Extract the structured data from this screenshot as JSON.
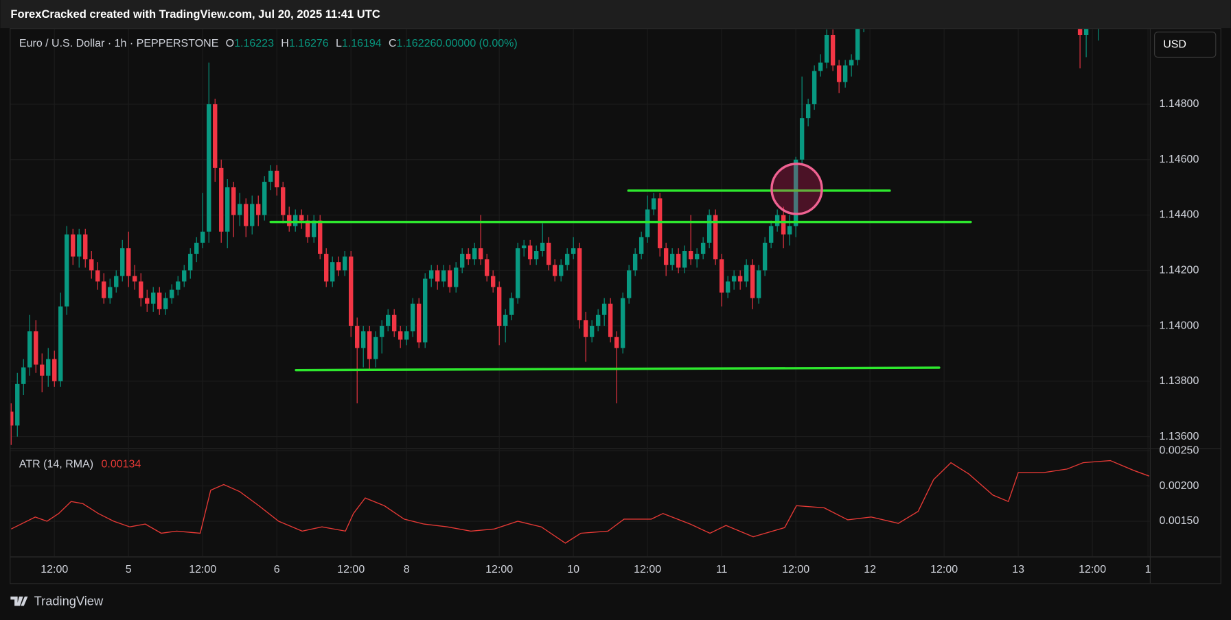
{
  "header": {
    "title": "ForexCracked created with TradingView.com, Jul 20, 2025 11:41 UTC"
  },
  "footer": {
    "logo": "TradingView"
  },
  "chart_data": [
    {
      "type": "candlestick",
      "symbol": "Euro / U.S. Dollar · 1h · PEPPERSTONE",
      "legend": [
        {
          "label": "O",
          "value": "1.16223"
        },
        {
          "label": "H",
          "value": "1.16276"
        },
        {
          "label": "L",
          "value": "1.16194"
        },
        {
          "label": "C",
          "value": "1.16226"
        },
        {
          "label": "",
          "value": "0.00000 (0.00%)"
        }
      ],
      "currency": "USD",
      "up_color": "#089981",
      "down_color": "#f23645",
      "grid": true,
      "xlim": [
        -0.1,
        184.3
      ],
      "ylim": [
        1.135576,
        1.150716
      ],
      "yticks": [
        {
          "value": 1.136,
          "label": "1.13600"
        },
        {
          "value": 1.138,
          "label": "1.13800"
        },
        {
          "value": 1.14,
          "label": "1.14000"
        },
        {
          "value": 1.142,
          "label": "1.14200"
        },
        {
          "value": 1.144,
          "label": "1.14400"
        },
        {
          "value": 1.146,
          "label": "1.14600"
        },
        {
          "value": 1.148,
          "label": "1.14800"
        }
      ],
      "xticks": [
        {
          "value": 7,
          "label": "12:00"
        },
        {
          "value": 19,
          "label": "5"
        },
        {
          "value": 31,
          "label": "12:00"
        },
        {
          "value": 43,
          "label": "6"
        },
        {
          "value": 55,
          "label": "12:00"
        },
        {
          "value": 64,
          "label": "8"
        },
        {
          "value": 79,
          "label": "12:00"
        },
        {
          "value": 91,
          "label": "10"
        },
        {
          "value": 103,
          "label": "12:00"
        },
        {
          "value": 115,
          "label": "11"
        },
        {
          "value": 127,
          "label": "12:00"
        },
        {
          "value": 139,
          "label": "12"
        },
        {
          "value": 151,
          "label": "12:00"
        },
        {
          "value": 163,
          "label": "13"
        },
        {
          "value": 175,
          "label": "12:00"
        },
        {
          "value": 184,
          "label": "1"
        }
      ],
      "x": [
        0,
        1,
        2,
        3,
        4,
        5,
        6,
        7,
        8,
        9,
        10,
        11,
        12,
        13,
        14,
        15,
        16,
        17,
        18,
        19,
        20,
        21,
        22,
        23,
        24,
        25,
        26,
        27,
        28,
        29,
        30,
        31,
        32,
        33,
        34,
        35,
        36,
        37,
        38,
        39,
        40,
        41,
        42,
        43,
        44,
        45,
        46,
        47,
        48,
        49,
        50,
        51,
        52,
        53,
        54,
        55,
        56,
        57,
        58,
        59,
        60,
        61,
        62,
        63,
        64,
        65,
        66,
        67,
        68,
        69,
        70,
        71,
        72,
        73,
        74,
        75,
        76,
        77,
        78,
        79,
        80,
        81,
        82,
        83,
        84,
        85,
        86,
        87,
        88,
        89,
        90,
        91,
        92,
        93,
        94,
        95,
        96,
        97,
        98,
        99,
        100,
        101,
        102,
        103,
        104,
        105,
        106,
        107,
        108,
        109,
        110,
        111,
        112,
        113,
        114,
        115,
        116,
        117,
        118,
        119,
        120,
        121,
        122,
        123,
        124,
        125,
        126,
        127,
        128,
        129,
        130,
        131,
        132,
        133,
        134,
        135,
        136,
        137,
        138,
        173,
        174,
        176
      ],
      "open": [
        1.1369,
        1.1364,
        1.1379,
        1.1385,
        1.1398,
        1.1386,
        1.1382,
        1.1388,
        1.138,
        1.1407,
        1.1433,
        1.1425,
        1.1433,
        1.1424,
        1.142,
        1.1416,
        1.141,
        1.1414,
        1.1418,
        1.1428,
        1.1418,
        1.1416,
        1.141,
        1.1408,
        1.1412,
        1.1406,
        1.141,
        1.1413,
        1.1416,
        1.142,
        1.1426,
        1.143,
        1.1434,
        1.148,
        1.1457,
        1.1434,
        1.145,
        1.144,
        1.1444,
        1.1436,
        1.1444,
        1.144,
        1.1452,
        1.1456,
        1.145,
        1.144,
        1.1436,
        1.144,
        1.1438,
        1.1432,
        1.1438,
        1.1426,
        1.1416,
        1.1423,
        1.142,
        1.1425,
        1.14,
        1.1392,
        1.1398,
        1.1388,
        1.1396,
        1.14,
        1.1404,
        1.1398,
        1.1395,
        1.1398,
        1.1408,
        1.1394,
        1.1417,
        1.142,
        1.1416,
        1.142,
        1.1414,
        1.1421,
        1.1426,
        1.1424,
        1.1428,
        1.1424,
        1.1418,
        1.1414,
        1.14,
        1.1404,
        1.141,
        1.1428,
        1.1429,
        1.1424,
        1.1427,
        1.143,
        1.1422,
        1.1418,
        1.1422,
        1.1426,
        1.1428,
        1.1402,
        1.1396,
        1.14,
        1.1404,
        1.1408,
        1.1396,
        1.1392,
        1.141,
        1.142,
        1.1426,
        1.1432,
        1.1442,
        1.1446,
        1.1428,
        1.1422,
        1.1426,
        1.1421,
        1.1427,
        1.1424,
        1.1426,
        1.143,
        1.144,
        1.1424,
        1.1412,
        1.1416,
        1.1418,
        1.1416,
        1.1422,
        1.141,
        1.142,
        1.143,
        1.1436,
        1.144,
        1.1433,
        1.1436,
        1.146,
        1.1475,
        1.148,
        1.1492,
        1.1495,
        1.1505,
        1.1494,
        1.1488,
        1.1494,
        1.1496,
        1.1512,
        1.1515,
        1.1505,
        1.1512
      ],
      "high": [
        1.1372,
        1.1383,
        1.1388,
        1.1404,
        1.1402,
        1.139,
        1.1392,
        1.1391,
        1.1412,
        1.1436,
        1.1435,
        1.1435,
        1.1435,
        1.1427,
        1.1423,
        1.1419,
        1.1417,
        1.142,
        1.1431,
        1.1434,
        1.1422,
        1.1419,
        1.1413,
        1.1414,
        1.1414,
        1.1412,
        1.1415,
        1.1418,
        1.1422,
        1.1428,
        1.1432,
        1.1448,
        1.1495,
        1.1482,
        1.146,
        1.1453,
        1.1452,
        1.1448,
        1.1446,
        1.1447,
        1.1447,
        1.1454,
        1.1458,
        1.1458,
        1.1452,
        1.1443,
        1.1442,
        1.1442,
        1.144,
        1.144,
        1.144,
        1.1428,
        1.1425,
        1.1425,
        1.1427,
        1.1427,
        1.1403,
        1.14,
        1.14,
        1.1398,
        1.1402,
        1.1406,
        1.1406,
        1.14,
        1.14,
        1.141,
        1.141,
        1.1419,
        1.1422,
        1.1422,
        1.1422,
        1.1422,
        1.1423,
        1.1428,
        1.1428,
        1.143,
        1.144,
        1.1426,
        1.142,
        1.1416,
        1.1406,
        1.1412,
        1.143,
        1.1431,
        1.1431,
        1.1429,
        1.1437,
        1.1432,
        1.1424,
        1.1424,
        1.1428,
        1.1432,
        1.143,
        1.1405,
        1.1402,
        1.1406,
        1.141,
        1.141,
        1.1398,
        1.1412,
        1.1422,
        1.1428,
        1.1434,
        1.1447,
        1.1448,
        1.1448,
        1.143,
        1.1428,
        1.1428,
        1.1429,
        1.144,
        1.1428,
        1.1432,
        1.1442,
        1.1442,
        1.1426,
        1.1418,
        1.142,
        1.142,
        1.1424,
        1.1424,
        1.1422,
        1.1432,
        1.1438,
        1.1442,
        1.1443,
        1.144,
        1.1461,
        1.149,
        1.1482,
        1.1494,
        1.1498,
        1.1507,
        1.1507,
        1.1496,
        1.1496,
        1.1498,
        1.1516,
        1.1518,
        1.1518,
        1.1514,
        1.1516
      ],
      "low": [
        1.1357,
        1.136,
        1.1375,
        1.1382,
        1.1383,
        1.1376,
        1.1378,
        1.1378,
        1.1378,
        1.1404,
        1.1422,
        1.1421,
        1.1421,
        1.1417,
        1.1413,
        1.1408,
        1.1408,
        1.1412,
        1.1416,
        1.1414,
        1.1413,
        1.1407,
        1.1405,
        1.1405,
        1.1404,
        1.1404,
        1.1408,
        1.1411,
        1.1414,
        1.1417,
        1.1423,
        1.1428,
        1.143,
        1.1452,
        1.143,
        1.1428,
        1.1432,
        1.1436,
        1.1432,
        1.1433,
        1.1436,
        1.1438,
        1.1449,
        1.1447,
        1.1437,
        1.1434,
        1.1434,
        1.1435,
        1.143,
        1.143,
        1.1424,
        1.1414,
        1.1414,
        1.1418,
        1.1418,
        1.1396,
        1.1372,
        1.1385,
        1.1384,
        1.1385,
        1.139,
        1.1398,
        1.1396,
        1.1392,
        1.1393,
        1.1396,
        1.1392,
        1.1392,
        1.1414,
        1.1413,
        1.1414,
        1.1412,
        1.1412,
        1.1419,
        1.1422,
        1.1422,
        1.1422,
        1.1416,
        1.1412,
        1.1393,
        1.1394,
        1.1402,
        1.1408,
        1.1425,
        1.1422,
        1.1422,
        1.1425,
        1.142,
        1.1416,
        1.1416,
        1.142,
        1.1424,
        1.1399,
        1.1387,
        1.1394,
        1.1398,
        1.14,
        1.1394,
        1.1372,
        1.139,
        1.1408,
        1.1418,
        1.1424,
        1.143,
        1.144,
        1.1425,
        1.1418,
        1.142,
        1.1419,
        1.1419,
        1.1422,
        1.1421,
        1.1424,
        1.1428,
        1.1422,
        1.1407,
        1.141,
        1.1413,
        1.1413,
        1.1414,
        1.1406,
        1.1408,
        1.1418,
        1.1428,
        1.1434,
        1.1428,
        1.1429,
        1.1432,
        1.1458,
        1.1472,
        1.1478,
        1.149,
        1.1493,
        1.1492,
        1.1484,
        1.1486,
        1.149,
        1.1494,
        1.1506,
        1.1493,
        1.1497,
        1.1503
      ],
      "close": [
        1.1364,
        1.1379,
        1.1385,
        1.1398,
        1.1386,
        1.1382,
        1.1388,
        1.138,
        1.1407,
        1.1433,
        1.1425,
        1.1433,
        1.1424,
        1.142,
        1.1416,
        1.141,
        1.1414,
        1.1418,
        1.1428,
        1.1418,
        1.1416,
        1.141,
        1.1408,
        1.1412,
        1.1406,
        1.141,
        1.1413,
        1.1416,
        1.142,
        1.1426,
        1.143,
        1.1434,
        1.148,
        1.1457,
        1.1434,
        1.145,
        1.144,
        1.1444,
        1.1436,
        1.1444,
        1.144,
        1.1452,
        1.1456,
        1.145,
        1.144,
        1.1436,
        1.144,
        1.1438,
        1.1432,
        1.1438,
        1.1426,
        1.1416,
        1.1423,
        1.142,
        1.1425,
        1.14,
        1.1392,
        1.1398,
        1.1388,
        1.1396,
        1.14,
        1.1404,
        1.1398,
        1.1395,
        1.1398,
        1.1408,
        1.1394,
        1.1417,
        1.142,
        1.1416,
        1.142,
        1.1414,
        1.1421,
        1.1426,
        1.1424,
        1.1428,
        1.1424,
        1.1418,
        1.1414,
        1.14,
        1.1404,
        1.141,
        1.1428,
        1.1429,
        1.1424,
        1.1427,
        1.143,
        1.1422,
        1.1418,
        1.1422,
        1.1426,
        1.1428,
        1.1402,
        1.1396,
        1.14,
        1.1404,
        1.1408,
        1.1396,
        1.1392,
        1.141,
        1.142,
        1.1426,
        1.1432,
        1.1442,
        1.1446,
        1.1428,
        1.1422,
        1.1426,
        1.1421,
        1.1427,
        1.1424,
        1.1426,
        1.143,
        1.144,
        1.1424,
        1.1412,
        1.1416,
        1.1418,
        1.1416,
        1.1422,
        1.141,
        1.142,
        1.143,
        1.1436,
        1.144,
        1.1433,
        1.1436,
        1.146,
        1.1475,
        1.148,
        1.1492,
        1.1495,
        1.1505,
        1.1494,
        1.1488,
        1.1494,
        1.1496,
        1.1512,
        1.1515,
        1.1505,
        1.1512,
        1.1513
      ],
      "line_color": "#2ee82e",
      "lines": [
        {
          "x": [
            99.9,
            142.2
          ],
          "y": [
            1.14488,
            1.14488
          ]
        },
        {
          "x": [
            42.0,
            155.3
          ],
          "y": [
            1.14375,
            1.14375
          ]
        },
        {
          "x": [
            46.1,
            150.2
          ],
          "y": [
            1.1384,
            1.13849
          ]
        }
      ]
    },
    {
      "type": "line",
      "title": "ATR (14, RMA)",
      "last_value": "0.00134",
      "color": "#e53935",
      "grid": true,
      "ylim": [
        0.001,
        0.002522
      ],
      "yticks": [
        {
          "value": 0.0015,
          "label": "0.00150"
        },
        {
          "value": 0.002,
          "label": "0.00200"
        },
        {
          "value": 0.0025,
          "label": "0.00250"
        }
      ],
      "x": [
        0,
        3.9,
        5.8,
        7.7,
        9.7,
        11.6,
        14.1,
        16.6,
        19.2,
        21.7,
        24.3,
        26.8,
        30.6,
        32.3,
        34.4,
        37.0,
        40.1,
        43.3,
        47.1,
        50.3,
        54.1,
        55.4,
        57.3,
        60.4,
        63.6,
        66.8,
        70.6,
        74.4,
        78.2,
        82.0,
        85.8,
        89.7,
        92.2,
        96.6,
        99.2,
        103.6,
        105.5,
        109.9,
        113.1,
        115.7,
        120.1,
        125.2,
        127.1,
        131.6,
        135.4,
        139.2,
        143.6,
        146.8,
        149.3,
        152.1,
        155.0,
        158.9,
        161.4,
        163.0,
        167.1,
        170.9,
        173.5,
        177.9,
        181.7,
        184.2
      ],
      "values": [
        0.00139,
        0.00156,
        0.0015,
        0.00161,
        0.00178,
        0.00175,
        0.00161,
        0.0015,
        0.00142,
        0.00146,
        0.00133,
        0.00136,
        0.00133,
        0.00194,
        0.00202,
        0.00192,
        0.00172,
        0.0015,
        0.00136,
        0.00142,
        0.00136,
        0.00161,
        0.00183,
        0.00172,
        0.00153,
        0.00146,
        0.00142,
        0.00136,
        0.00139,
        0.0015,
        0.00142,
        0.00119,
        0.00133,
        0.00136,
        0.00153,
        0.00153,
        0.00161,
        0.00146,
        0.00133,
        0.00144,
        0.00128,
        0.00141,
        0.00172,
        0.00169,
        0.00152,
        0.00156,
        0.00147,
        0.00164,
        0.00209,
        0.00233,
        0.00217,
        0.00187,
        0.00178,
        0.00219,
        0.00219,
        0.00224,
        0.00233,
        0.00236,
        0.00222,
        0.00214
      ]
    }
  ]
}
